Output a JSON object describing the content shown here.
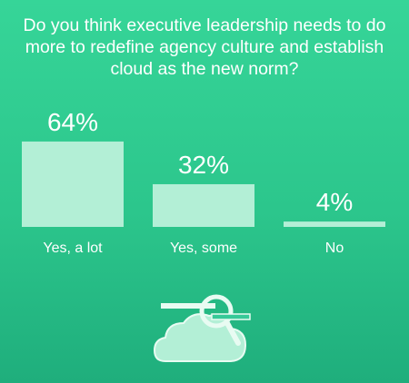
{
  "chart_data": {
    "type": "bar",
    "title": "Do you think executive leadership needs to do more to redefine agency culture and establish cloud as the new norm?",
    "categories": [
      "Yes, a lot",
      "Yes, some",
      "No"
    ],
    "values": [
      64,
      32,
      4
    ],
    "value_labels": [
      "64%",
      "32%",
      "4%"
    ],
    "color": "#b3efd6"
  }
}
